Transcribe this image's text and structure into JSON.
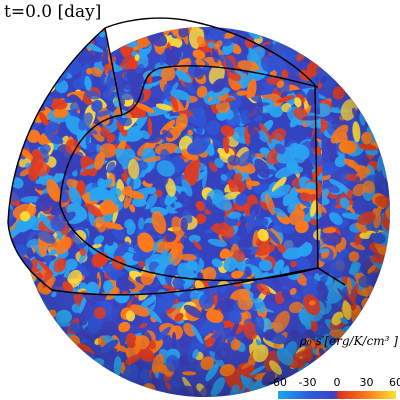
{
  "time_label": "t=0.0 [day]",
  "colorbar": {
    "title": "ρ₀ s′[erg/K/cm³ ]",
    "min": -60,
    "max": 60,
    "ticks": [
      "-60",
      "-30",
      "0",
      "30",
      "60"
    ],
    "tick_values": [
      -60,
      -30,
      0,
      30,
      60
    ],
    "colors": [
      "#18a6f0",
      "#2b5fe0",
      "#3b3fc8",
      "#e0331a",
      "#ff7a1a",
      "#ffe028"
    ]
  },
  "palette": {
    "light_blue": "#2aa4f2",
    "blue": "#2f55d6",
    "dark_blue": "#3a3fb8",
    "red": "#e23c1f",
    "orange": "#ff7a18",
    "yellow": "#ffd93a"
  }
}
